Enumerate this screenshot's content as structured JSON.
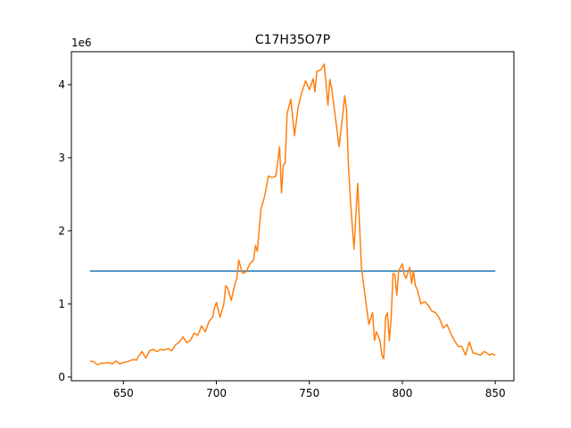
{
  "chart_data": {
    "type": "line",
    "title": "C17H35O7P",
    "xlabel": "",
    "ylabel": "",
    "y_offset_label": "1e6",
    "xlim": [
      622,
      860
    ],
    "ylim": [
      -0.05,
      4.45
    ],
    "xticks": [
      650,
      700,
      750,
      800,
      850
    ],
    "yticks": [
      0,
      1,
      2,
      3,
      4
    ],
    "grid": false,
    "series": [
      {
        "color": "#1f77b4",
        "x": [
          632,
          850
        ],
        "y": [
          1.45,
          1.45
        ]
      },
      {
        "color": "#ff7f0e",
        "x": [
          632,
          634,
          636,
          638,
          640,
          642,
          644,
          646,
          648,
          650,
          652,
          654,
          656,
          657,
          658,
          660,
          662,
          664,
          666,
          668,
          670,
          672,
          674,
          676,
          678,
          680,
          682,
          684,
          686,
          688,
          690,
          692,
          694,
          696,
          698,
          699,
          700,
          702,
          704,
          705,
          706,
          708,
          710,
          711,
          712,
          714,
          716,
          718,
          720,
          721,
          722,
          724,
          726,
          728,
          730,
          732,
          734,
          735,
          736,
          737,
          738,
          740,
          741,
          742,
          744,
          746,
          748,
          750,
          752,
          753,
          754,
          756,
          758,
          760,
          761,
          762,
          764,
          766,
          768,
          769,
          770,
          771,
          772,
          774,
          776,
          778,
          780,
          782,
          784,
          785,
          786,
          788,
          789,
          790,
          791,
          792,
          793,
          794,
          795,
          796,
          797,
          798,
          800,
          801,
          802,
          804,
          805,
          806,
          807,
          808,
          810,
          812,
          814,
          816,
          818,
          820,
          822,
          824,
          826,
          828,
          830,
          832,
          834,
          836,
          838,
          840,
          842,
          844,
          846,
          847,
          848,
          850
        ],
        "y": [
          0.22,
          0.21,
          0.17,
          0.19,
          0.19,
          0.2,
          0.18,
          0.22,
          0.18,
          0.2,
          0.21,
          0.23,
          0.24,
          0.23,
          0.28,
          0.35,
          0.26,
          0.36,
          0.38,
          0.35,
          0.38,
          0.37,
          0.39,
          0.36,
          0.44,
          0.48,
          0.55,
          0.47,
          0.5,
          0.6,
          0.57,
          0.7,
          0.62,
          0.76,
          0.82,
          0.95,
          1.02,
          0.82,
          1.0,
          1.25,
          1.22,
          1.05,
          1.28,
          1.35,
          1.6,
          1.42,
          1.44,
          1.55,
          1.6,
          1.8,
          1.72,
          2.3,
          2.48,
          2.75,
          2.73,
          2.75,
          3.15,
          2.52,
          2.9,
          2.93,
          3.6,
          3.8,
          3.55,
          3.3,
          3.7,
          3.9,
          4.05,
          3.93,
          4.08,
          3.9,
          4.18,
          4.2,
          4.28,
          3.72,
          4.07,
          3.95,
          3.55,
          3.15,
          3.6,
          3.85,
          3.65,
          2.9,
          2.45,
          1.75,
          2.65,
          1.5,
          1.1,
          0.72,
          0.88,
          0.5,
          0.62,
          0.5,
          0.3,
          0.25,
          0.82,
          0.88,
          0.5,
          0.82,
          1.42,
          1.4,
          1.12,
          1.45,
          1.55,
          1.4,
          1.35,
          1.5,
          1.28,
          1.45,
          1.25,
          1.2,
          1.0,
          1.03,
          0.98,
          0.9,
          0.88,
          0.8,
          0.67,
          0.72,
          0.6,
          0.5,
          0.42,
          0.42,
          0.3,
          0.48,
          0.33,
          0.32,
          0.3,
          0.35,
          0.32,
          0.3,
          0.32,
          0.3
        ]
      }
    ]
  }
}
